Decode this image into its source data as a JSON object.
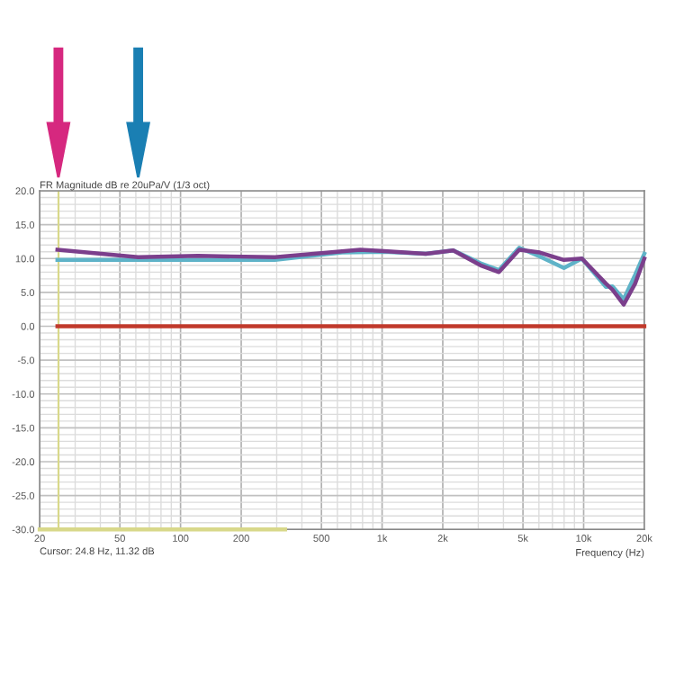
{
  "chart_data": {
    "type": "line",
    "title": "FR Magnitude dB re 20uPa/V (1/3 oct)",
    "xlabel": "Frequency (Hz)",
    "log": "x",
    "grid": true,
    "series": [
      {
        "color": "#5fb3c8",
        "x": [
          24.5,
          61.6,
          122,
          294,
          444,
          632,
          1021,
          1647,
          2255,
          3080,
          3800,
          4790,
          6060,
          7980,
          9800,
          12900,
          13900,
          15800,
          18000,
          20000
        ],
        "values": [
          9.8,
          9.8,
          9.8,
          9.8,
          10.4,
          10.9,
          11.0,
          10.7,
          11.2,
          9.3,
          8.3,
          11.6,
          10.3,
          8.6,
          10.0,
          5.8,
          5.9,
          4.0,
          7.6,
          10.7
        ]
      },
      {
        "color": "#7b3f8c",
        "x": [
          24.5,
          61.6,
          122,
          294,
          778,
          1021,
          1647,
          2255,
          3080,
          3800,
          4790,
          6060,
          7980,
          9800,
          12900,
          13900,
          15800,
          18000,
          20000
        ],
        "values": [
          11.3,
          10.2,
          10.4,
          10.2,
          11.3,
          11.1,
          10.7,
          11.2,
          9.0,
          8.0,
          11.3,
          10.9,
          9.8,
          10.0,
          6.3,
          5.4,
          3.2,
          6.3,
          10.0
        ]
      },
      {
        "color": "#c0392b",
        "x": [
          24.5,
          20000
        ],
        "values": [
          0,
          0
        ]
      },
      {
        "color": "#d8d88a",
        "x": [
          20,
          330
        ],
        "values": [
          -30,
          -30
        ]
      }
    ],
    "ref_lines": [
      {
        "axis": "x",
        "value": 24.8,
        "color": "#d8d88a"
      }
    ],
    "xlim": [
      20,
      20000
    ],
    "ylim": [
      -30,
      20
    ],
    "xticks": [
      20,
      50,
      100,
      200,
      500,
      {
        "value": 1000,
        "label": "1k"
      },
      {
        "value": 2000,
        "label": "2k"
      },
      {
        "value": 5000,
        "label": "5k"
      },
      {
        "value": 10000,
        "label": "10k"
      },
      {
        "value": 20000,
        "label": "20k"
      }
    ],
    "yticks": [
      {
        "value": -30,
        "label": "-30.0"
      },
      {
        "value": -25,
        "label": "-25.0"
      },
      {
        "value": -20,
        "label": "-20.0"
      },
      {
        "value": -15,
        "label": "-15.0"
      },
      {
        "value": -10,
        "label": "-10.0"
      },
      {
        "value": -5,
        "label": "-5.0"
      },
      {
        "value": 0,
        "label": "0.0"
      },
      {
        "value": 5,
        "label": "5.0"
      },
      {
        "value": 10,
        "label": "10.0"
      },
      {
        "value": 15,
        "label": "15.0"
      },
      {
        "value": 20,
        "label": "20.0"
      }
    ],
    "annotations": [
      "Cursor: 24.8 Hz, 11.32 dB"
    ]
  }
}
